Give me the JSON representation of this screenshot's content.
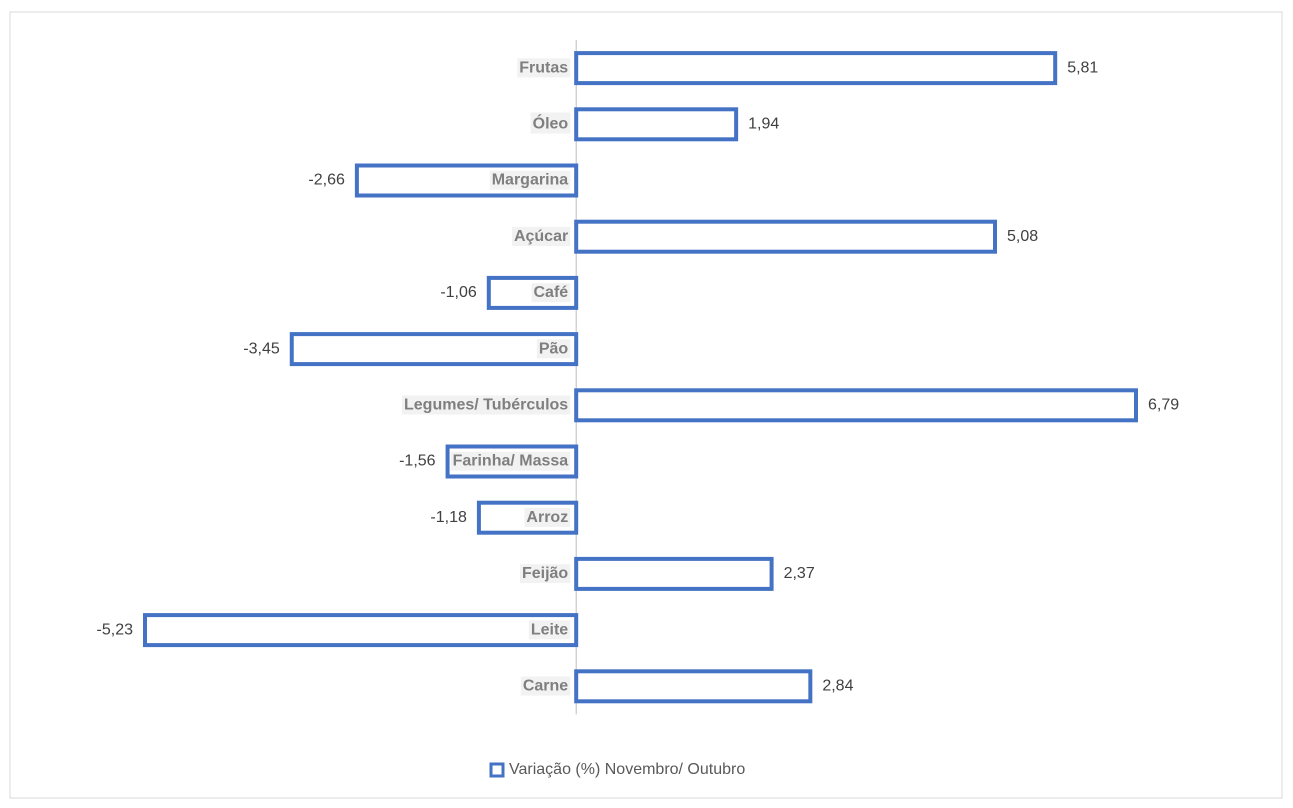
{
  "chart_data": {
    "type": "bar",
    "orientation": "horizontal",
    "categories": [
      "Frutas",
      "Óleo",
      "Margarina",
      "Açúcar",
      "Café",
      "Pão",
      "Legumes/ Tubérculos",
      "Farinha/ Massa",
      "Arroz",
      "Feijão",
      "Leite",
      "Carne"
    ],
    "series": [
      {
        "name": "Variação (%) Novembro/ Outubro",
        "color": "#4472c4",
        "values": [
          5.81,
          1.94,
          -2.66,
          5.08,
          -1.06,
          -3.45,
          6.79,
          -1.56,
          -1.18,
          2.37,
          -5.23,
          2.84
        ],
        "value_labels": [
          "5,81",
          "1,94",
          "-2,66",
          "5,08",
          "-1,06",
          "-3,45",
          "6,79",
          "-1,56",
          "-1,18",
          "2,37",
          "-5,23",
          "2,84"
        ]
      }
    ],
    "legend": "bottom"
  }
}
